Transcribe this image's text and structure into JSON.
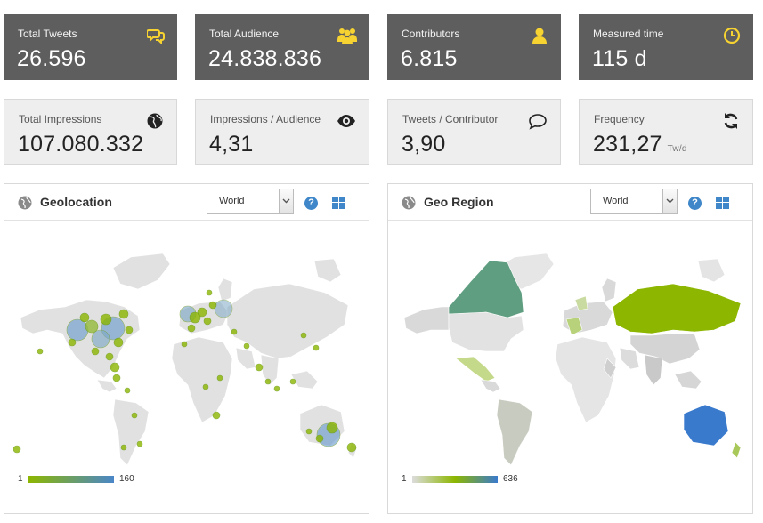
{
  "stats_top": [
    {
      "label": "Total Tweets",
      "value": "26.596",
      "icon": "speech-bubbles-icon"
    },
    {
      "label": "Total Audience",
      "value": "24.838.836",
      "icon": "group-icon"
    },
    {
      "label": "Contributors",
      "value": "6.815",
      "icon": "user-icon"
    },
    {
      "label": "Measured time",
      "value": "115 d",
      "icon": "clock-icon"
    }
  ],
  "stats_bottom": [
    {
      "label": "Total Impressions",
      "value": "107.080.332",
      "icon": "globe-icon"
    },
    {
      "label": "Impressions / Audience",
      "value": "4,31",
      "icon": "eye-icon"
    },
    {
      "label": "Tweets / Contributor",
      "value": "3,90",
      "icon": "speech-bubble-icon"
    },
    {
      "label": "Frequency",
      "value": "231,27",
      "unit": "Tw/d",
      "icon": "refresh-icon"
    }
  ],
  "colors": {
    "dark_card": "#5e5e5e",
    "accent_yellow": "#f6d331",
    "help_blue": "#3f87c9"
  },
  "geolocation": {
    "title": "Geolocation",
    "select_value": "World",
    "legend_min": "1",
    "legend_max": "160",
    "legend_colors": [
      "#8cb600",
      "#4a86c8"
    ]
  },
  "georegion": {
    "title": "Geo Region",
    "select_value": "World",
    "legend_min": "1",
    "legend_max": "636",
    "legend_colors": [
      "#dcdcdc",
      "#8cb600",
      "#3a7acd"
    ]
  }
}
